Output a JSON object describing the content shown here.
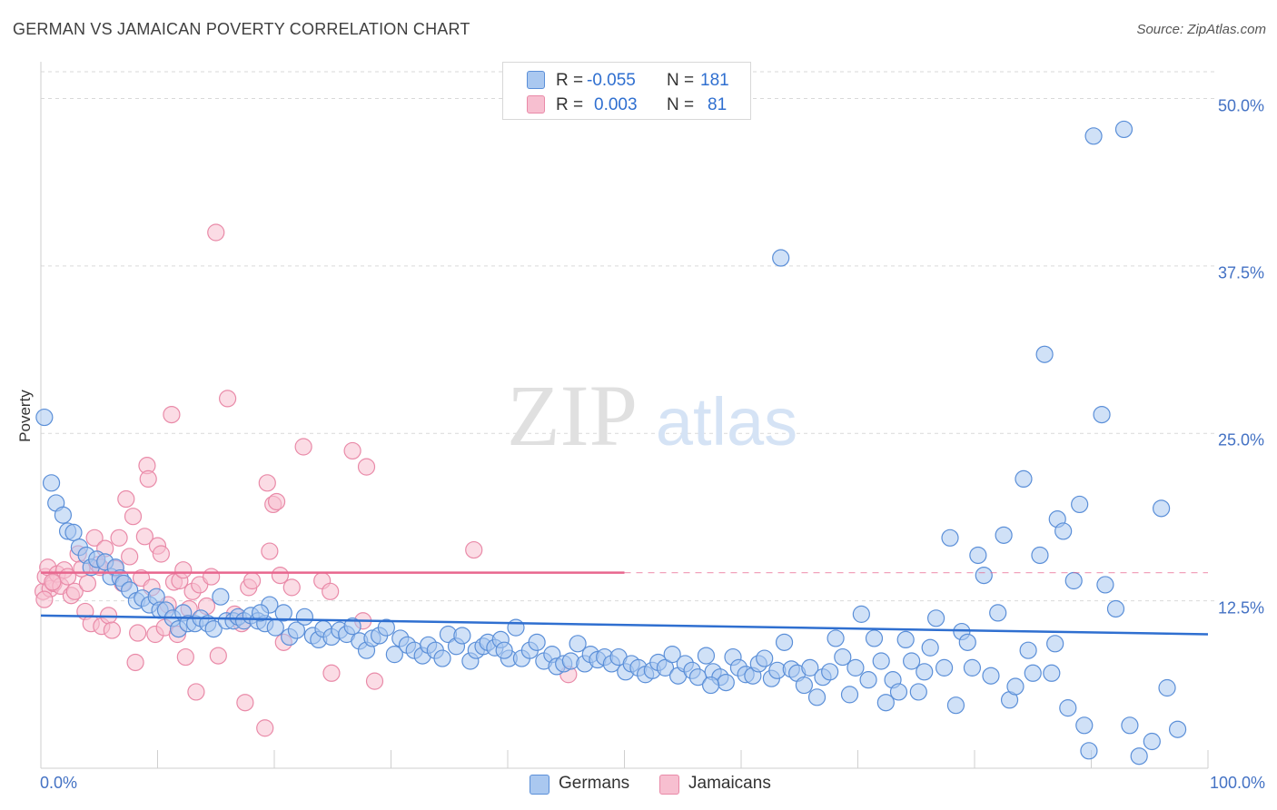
{
  "header": {
    "title": "GERMAN VS JAMAICAN POVERTY CORRELATION CHART",
    "source": "Source: ZipAtlas.com"
  },
  "legend": {
    "rows": [
      {
        "r_label": "R =",
        "r_value": "-0.055",
        "n_label": "N =",
        "n_value": "181"
      },
      {
        "r_label": "R =",
        "r_value": "0.003",
        "n_label": "N =",
        "n_value": "81"
      }
    ]
  },
  "bottom_legend": [
    "Germans",
    "Jamaicans"
  ],
  "watermark": {
    "zip": "ZIP",
    "atlas": "atlas"
  },
  "colors": {
    "german_fill": "#aac8f0",
    "german_stroke": "#5b8fd8",
    "german_line": "#2f6fd0",
    "jamaican_fill": "#f7bfd0",
    "jamaican_stroke": "#e98aa8",
    "jamaican_line": "#e8668e",
    "tick_label": "#4472c4"
  },
  "chart_data": {
    "type": "scatter",
    "title": "GERMAN VS JAMAICAN POVERTY CORRELATION CHART",
    "xlabel": "",
    "ylabel": "Poverty",
    "xlim": [
      0,
      100
    ],
    "ylim": [
      0,
      52
    ],
    "x_tick_labels": [
      "0.0%",
      "100.0%"
    ],
    "y_ticks": [
      12.5,
      25.0,
      37.5,
      50.0
    ],
    "y_tick_labels": [
      "12.5%",
      "25.0%",
      "37.5%",
      "50.0%"
    ],
    "grid": "horizontal dashed",
    "legend_position": "top-center",
    "series": [
      {
        "name": "Germans",
        "R": -0.055,
        "N": 181,
        "trend": {
          "x": [
            0,
            100
          ],
          "y": [
            11.4,
            10.0
          ]
        },
        "points": [
          [
            0.3,
            26.2
          ],
          [
            0.9,
            21.3
          ],
          [
            1.3,
            19.8
          ],
          [
            1.9,
            18.9
          ],
          [
            2.3,
            17.7
          ],
          [
            2.8,
            17.6
          ],
          [
            3.3,
            16.5
          ],
          [
            3.9,
            15.9
          ],
          [
            4.3,
            15.0
          ],
          [
            4.8,
            15.6
          ],
          [
            5.5,
            15.4
          ],
          [
            6.0,
            14.3
          ],
          [
            6.4,
            15.0
          ],
          [
            6.8,
            14.2
          ],
          [
            7.1,
            13.8
          ],
          [
            7.6,
            13.3
          ],
          [
            8.2,
            12.5
          ],
          [
            8.7,
            12.7
          ],
          [
            9.3,
            12.2
          ],
          [
            9.9,
            12.8
          ],
          [
            10.2,
            11.8
          ],
          [
            10.7,
            11.8
          ],
          [
            11.3,
            11.2
          ],
          [
            11.8,
            10.4
          ],
          [
            12.2,
            11.6
          ],
          [
            12.6,
            10.8
          ],
          [
            13.2,
            10.8
          ],
          [
            13.7,
            11.2
          ],
          [
            14.3,
            10.8
          ],
          [
            14.8,
            10.4
          ],
          [
            15.4,
            12.8
          ],
          [
            15.9,
            11.0
          ],
          [
            16.5,
            11.0
          ],
          [
            16.9,
            11.3
          ],
          [
            17.4,
            11.0
          ],
          [
            18.0,
            11.4
          ],
          [
            18.6,
            11.0
          ],
          [
            19.2,
            10.8
          ],
          [
            19.6,
            12.2
          ],
          [
            20.1,
            10.5
          ],
          [
            20.8,
            11.6
          ],
          [
            21.3,
            9.8
          ],
          [
            21.9,
            10.3
          ],
          [
            22.6,
            11.3
          ],
          [
            23.3,
            9.9
          ],
          [
            23.8,
            9.6
          ],
          [
            24.2,
            10.4
          ],
          [
            24.9,
            9.8
          ],
          [
            25.6,
            10.3
          ],
          [
            26.2,
            10.0
          ],
          [
            26.7,
            10.6
          ],
          [
            27.3,
            9.5
          ],
          [
            27.9,
            8.8
          ],
          [
            28.4,
            9.7
          ],
          [
            29.0,
            9.9
          ],
          [
            29.6,
            10.5
          ],
          [
            30.3,
            8.5
          ],
          [
            30.8,
            9.7
          ],
          [
            31.4,
            9.2
          ],
          [
            32.0,
            8.8
          ],
          [
            32.7,
            8.4
          ],
          [
            33.2,
            9.2
          ],
          [
            33.8,
            8.8
          ],
          [
            34.4,
            8.2
          ],
          [
            34.9,
            10.0
          ],
          [
            35.6,
            9.1
          ],
          [
            36.1,
            9.9
          ],
          [
            36.8,
            8.0
          ],
          [
            37.3,
            8.8
          ],
          [
            37.9,
            9.1
          ],
          [
            38.3,
            9.4
          ],
          [
            38.9,
            9.0
          ],
          [
            39.4,
            9.6
          ],
          [
            40.1,
            8.2
          ],
          [
            40.7,
            10.5
          ],
          [
            41.2,
            8.2
          ],
          [
            41.9,
            8.8
          ],
          [
            42.5,
            9.4
          ],
          [
            43.1,
            8.0
          ],
          [
            43.8,
            8.5
          ],
          [
            44.2,
            7.6
          ],
          [
            44.8,
            7.8
          ],
          [
            45.4,
            8.0
          ],
          [
            46.0,
            9.3
          ],
          [
            46.6,
            7.8
          ],
          [
            47.1,
            8.5
          ],
          [
            47.7,
            8.1
          ],
          [
            48.3,
            8.3
          ],
          [
            48.9,
            7.8
          ],
          [
            49.5,
            8.3
          ],
          [
            50.1,
            7.2
          ],
          [
            50.6,
            7.8
          ],
          [
            51.2,
            7.5
          ],
          [
            51.8,
            7.0
          ],
          [
            52.4,
            7.3
          ],
          [
            52.9,
            7.9
          ],
          [
            53.5,
            7.5
          ],
          [
            54.1,
            8.5
          ],
          [
            54.6,
            6.9
          ],
          [
            55.2,
            7.8
          ],
          [
            55.8,
            7.3
          ],
          [
            56.3,
            6.8
          ],
          [
            57.0,
            8.4
          ],
          [
            57.6,
            7.2
          ],
          [
            58.2,
            6.8
          ],
          [
            58.7,
            6.4
          ],
          [
            59.3,
            8.3
          ],
          [
            59.8,
            7.5
          ],
          [
            60.4,
            7.0
          ],
          [
            61.0,
            6.9
          ],
          [
            61.5,
            7.8
          ],
          [
            62.0,
            8.2
          ],
          [
            62.6,
            6.7
          ],
          [
            63.1,
            7.3
          ],
          [
            63.7,
            9.4
          ],
          [
            64.3,
            7.4
          ],
          [
            64.8,
            7.1
          ],
          [
            65.4,
            6.2
          ],
          [
            65.9,
            7.5
          ],
          [
            66.5,
            5.3
          ],
          [
            67.0,
            6.8
          ],
          [
            67.6,
            7.2
          ],
          [
            68.1,
            9.7
          ],
          [
            68.7,
            8.3
          ],
          [
            69.3,
            5.5
          ],
          [
            69.8,
            7.5
          ],
          [
            70.3,
            11.5
          ],
          [
            70.9,
            6.6
          ],
          [
            71.4,
            9.7
          ],
          [
            72.0,
            8.0
          ],
          [
            72.4,
            4.9
          ],
          [
            73.0,
            6.6
          ],
          [
            73.5,
            5.7
          ],
          [
            74.1,
            9.6
          ],
          [
            74.6,
            8.0
          ],
          [
            75.2,
            5.7
          ],
          [
            75.7,
            7.2
          ],
          [
            76.2,
            9.0
          ],
          [
            76.7,
            11.2
          ],
          [
            77.4,
            7.5
          ],
          [
            77.9,
            17.2
          ],
          [
            78.4,
            4.7
          ],
          [
            78.9,
            10.2
          ],
          [
            79.4,
            9.4
          ],
          [
            79.8,
            7.5
          ],
          [
            80.3,
            15.9
          ],
          [
            80.8,
            14.4
          ],
          [
            81.4,
            6.9
          ],
          [
            82.0,
            11.6
          ],
          [
            82.5,
            17.4
          ],
          [
            83.0,
            5.1
          ],
          [
            83.5,
            6.1
          ],
          [
            84.2,
            21.6
          ],
          [
            84.6,
            8.8
          ],
          [
            85.0,
            7.1
          ],
          [
            85.6,
            15.9
          ],
          [
            86.0,
            30.9
          ],
          [
            86.6,
            7.1
          ],
          [
            87.1,
            18.6
          ],
          [
            87.6,
            17.7
          ],
          [
            88.0,
            4.5
          ],
          [
            88.5,
            14.0
          ],
          [
            89.0,
            19.7
          ],
          [
            89.4,
            3.2
          ],
          [
            89.8,
            1.3
          ],
          [
            90.2,
            47.2
          ],
          [
            90.9,
            26.4
          ],
          [
            91.2,
            13.7
          ],
          [
            92.1,
            11.9
          ],
          [
            92.8,
            47.7
          ],
          [
            93.3,
            3.2
          ],
          [
            94.1,
            0.9
          ],
          [
            95.2,
            2.0
          ],
          [
            96.0,
            19.4
          ],
          [
            96.5,
            6.0
          ],
          [
            97.4,
            2.9
          ],
          [
            86.9,
            9.3
          ],
          [
            63.4,
            38.1
          ],
          [
            57.4,
            6.2
          ],
          [
            39.7,
            8.8
          ],
          [
            18.8,
            11.6
          ]
        ]
      },
      {
        "name": "Jamaicans",
        "R": 0.003,
        "N": 81,
        "trend": {
          "x": [
            0,
            50
          ],
          "y": [
            14.6,
            14.6
          ]
        },
        "trend_dashed": {
          "x": [
            50,
            100
          ],
          "y": [
            14.6,
            14.6
          ]
        },
        "points": [
          [
            0.2,
            13.2
          ],
          [
            0.4,
            14.3
          ],
          [
            0.6,
            15.0
          ],
          [
            0.8,
            13.4
          ],
          [
            1.1,
            13.8
          ],
          [
            1.4,
            14.5
          ],
          [
            1.7,
            13.6
          ],
          [
            2.0,
            14.8
          ],
          [
            2.3,
            14.3
          ],
          [
            2.6,
            12.9
          ],
          [
            2.9,
            13.2
          ],
          [
            3.2,
            16.0
          ],
          [
            3.5,
            14.9
          ],
          [
            3.8,
            11.7
          ],
          [
            4.0,
            13.8
          ],
          [
            4.3,
            10.8
          ],
          [
            4.6,
            17.2
          ],
          [
            4.9,
            15.2
          ],
          [
            5.2,
            10.6
          ],
          [
            5.5,
            16.4
          ],
          [
            5.8,
            11.4
          ],
          [
            6.1,
            10.3
          ],
          [
            6.4,
            14.9
          ],
          [
            6.7,
            17.2
          ],
          [
            7.0,
            13.8
          ],
          [
            7.3,
            20.1
          ],
          [
            7.6,
            15.8
          ],
          [
            7.9,
            18.8
          ],
          [
            8.1,
            7.9
          ],
          [
            8.3,
            10.1
          ],
          [
            8.6,
            14.2
          ],
          [
            8.9,
            17.3
          ],
          [
            9.1,
            22.6
          ],
          [
            9.2,
            21.6
          ],
          [
            9.5,
            13.5
          ],
          [
            9.8,
            10.0
          ],
          [
            10.0,
            16.6
          ],
          [
            10.3,
            16.0
          ],
          [
            10.6,
            10.5
          ],
          [
            10.9,
            12.2
          ],
          [
            11.2,
            26.4
          ],
          [
            11.4,
            13.9
          ],
          [
            11.7,
            10.0
          ],
          [
            11.9,
            14.0
          ],
          [
            12.2,
            14.8
          ],
          [
            12.4,
            8.3
          ],
          [
            12.7,
            11.9
          ],
          [
            13.0,
            13.2
          ],
          [
            13.3,
            5.7
          ],
          [
            13.6,
            13.7
          ],
          [
            14.2,
            12.1
          ],
          [
            14.6,
            14.3
          ],
          [
            15.0,
            40.0
          ],
          [
            15.2,
            8.4
          ],
          [
            16.0,
            27.6
          ],
          [
            16.6,
            11.5
          ],
          [
            17.2,
            10.8
          ],
          [
            17.5,
            4.9
          ],
          [
            17.8,
            13.5
          ],
          [
            18.1,
            14.0
          ],
          [
            19.2,
            3.0
          ],
          [
            19.4,
            21.3
          ],
          [
            19.6,
            16.2
          ],
          [
            19.9,
            19.7
          ],
          [
            20.2,
            19.9
          ],
          [
            20.5,
            14.4
          ],
          [
            20.8,
            9.4
          ],
          [
            21.5,
            13.5
          ],
          [
            22.5,
            24.0
          ],
          [
            24.1,
            14.0
          ],
          [
            24.8,
            13.2
          ],
          [
            24.9,
            7.1
          ],
          [
            26.7,
            23.7
          ],
          [
            27.6,
            11.0
          ],
          [
            27.9,
            22.5
          ],
          [
            28.6,
            6.5
          ],
          [
            37.1,
            16.3
          ],
          [
            45.2,
            7.0
          ],
          [
            0.3,
            12.6
          ],
          [
            1.0,
            13.9
          ],
          [
            5.1,
            15.0
          ]
        ]
      }
    ]
  }
}
